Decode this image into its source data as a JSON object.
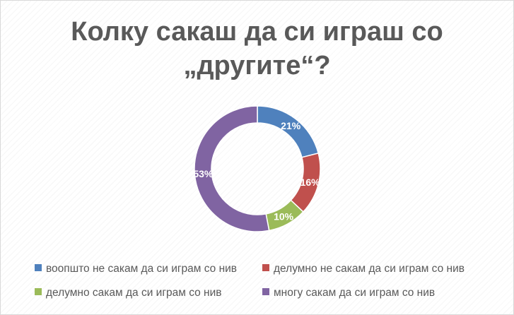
{
  "chart_data": {
    "type": "pie",
    "variant": "donut",
    "title": "Колку сакаш да си играш со „другите“?",
    "title_lines": [
      "Колку сакаш да си играш со",
      "„другите“?"
    ],
    "categories": [
      "воопшто не сакам да си играм со нив",
      "делумно не сакам да си играм со нив",
      "делумно сакам да си играм со нив",
      "многу сакам да си играм со нив"
    ],
    "values": [
      21,
      16,
      10,
      53
    ],
    "value_labels": [
      "21%",
      "16%",
      "10%",
      "53%"
    ],
    "colors": [
      "#4f81bd",
      "#c0504d",
      "#9bbb59",
      "#8064a2"
    ],
    "legend_position": "bottom",
    "grid": false
  }
}
